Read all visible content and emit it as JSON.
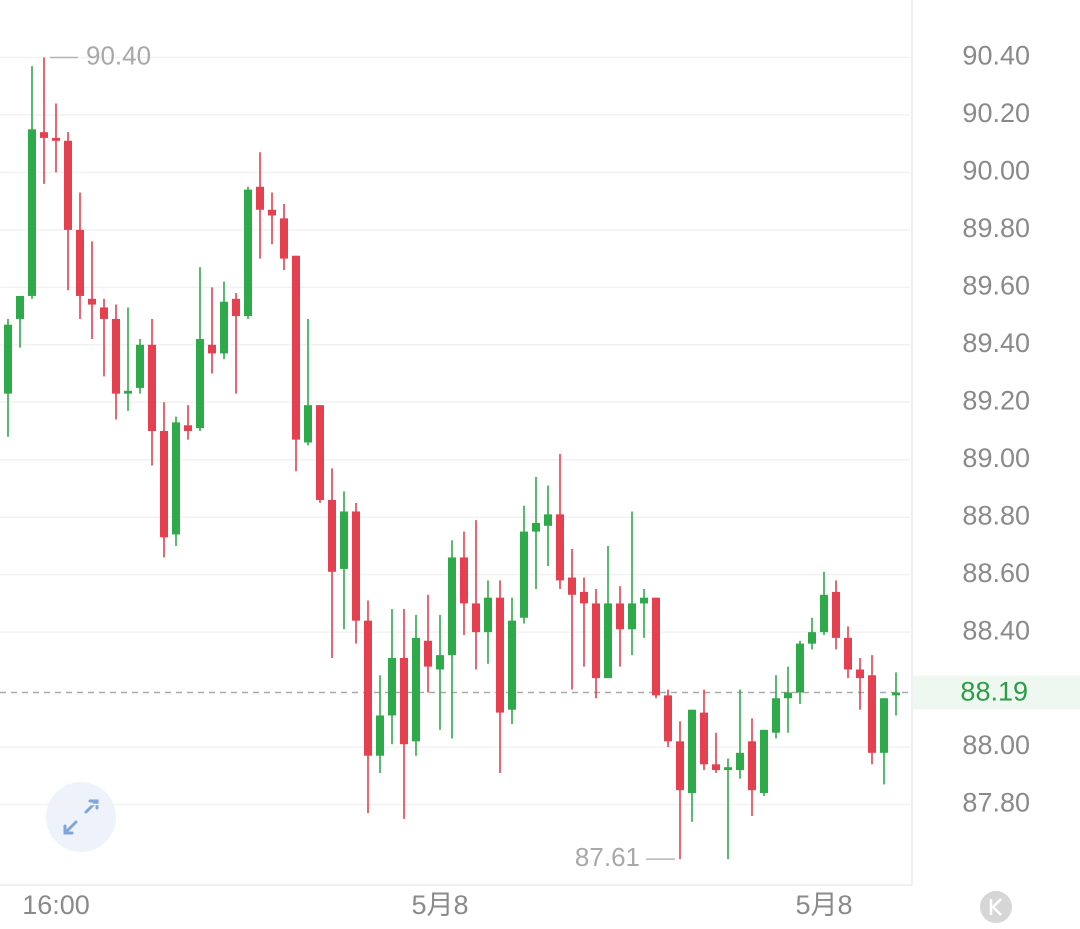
{
  "chart_data": {
    "type": "candlestick",
    "up_color": "#2eaa4a",
    "down_color": "#e5404f",
    "categories": [
      null,
      null,
      null,
      null,
      "16:00",
      null,
      null,
      null,
      null,
      null,
      null,
      null,
      null,
      null,
      null,
      null,
      null,
      null,
      null,
      null,
      null,
      null,
      null,
      null,
      null,
      null,
      null,
      null,
      null,
      null,
      null,
      null,
      null,
      null,
      null,
      null,
      "5月8",
      null,
      null,
      null,
      null,
      null,
      null,
      null,
      null,
      null,
      null,
      null,
      null,
      null,
      null,
      null,
      null,
      null,
      null,
      null,
      null,
      null,
      null,
      null,
      null,
      null,
      null,
      null,
      null,
      null,
      null,
      null,
      "5月8",
      null,
      null,
      null,
      null,
      null,
      null
    ],
    "open": [
      89.23,
      89.49,
      89.57,
      90.14,
      90.12,
      90.11,
      89.8,
      89.56,
      89.53,
      89.49,
      89.23,
      89.25,
      89.4,
      89.1,
      88.74,
      89.12,
      89.11,
      89.4,
      89.37,
      89.56,
      89.5,
      89.95,
      89.87,
      89.84,
      89.71,
      89.06,
      89.19,
      88.86,
      88.62,
      88.82,
      88.44,
      87.97,
      88.11,
      88.31,
      88.02,
      88.37,
      88.27,
      88.32,
      88.66,
      88.5,
      88.4,
      88.52,
      88.13,
      88.45,
      88.75,
      88.77,
      88.81,
      88.59,
      88.54,
      88.5,
      88.24,
      88.5,
      88.41,
      88.5,
      88.52,
      88.18,
      88.02,
      87.84,
      88.12,
      87.94,
      87.92,
      87.92,
      88.02,
      87.84,
      88.05,
      88.17,
      88.19,
      88.36,
      88.4,
      88.54,
      88.38,
      88.27,
      88.25,
      87.98,
      88.18
    ],
    "high": [
      89.49,
      89.57,
      90.37,
      90.4,
      90.24,
      90.14,
      89.93,
      89.76,
      89.56,
      89.54,
      89.53,
      89.42,
      89.49,
      89.2,
      89.15,
      89.19,
      89.67,
      89.6,
      89.62,
      89.58,
      89.95,
      90.07,
      89.93,
      89.89,
      89.71,
      89.49,
      89.19,
      88.97,
      88.89,
      88.85,
      88.51,
      88.25,
      88.48,
      88.48,
      88.46,
      88.53,
      88.46,
      88.72,
      88.75,
      88.79,
      88.58,
      88.58,
      88.52,
      88.84,
      88.94,
      88.91,
      89.02,
      88.69,
      88.59,
      88.55,
      88.7,
      88.56,
      88.82,
      88.55,
      88.52,
      88.2,
      88.09,
      88.13,
      88.2,
      88.05,
      87.96,
      88.2,
      88.1,
      88.06,
      88.25,
      88.28,
      88.37,
      88.45,
      88.61,
      88.58,
      88.42,
      88.31,
      88.32,
      88.17,
      88.26
    ],
    "low": [
      89.08,
      89.39,
      89.56,
      89.96,
      90.0,
      89.59,
      89.49,
      89.42,
      89.29,
      89.14,
      89.17,
      89.23,
      88.98,
      88.66,
      88.7,
      89.07,
      89.1,
      89.3,
      89.35,
      89.23,
      89.49,
      89.7,
      89.75,
      89.66,
      88.96,
      89.05,
      88.85,
      88.31,
      88.41,
      88.36,
      87.77,
      87.91,
      88.01,
      87.75,
      87.97,
      88.19,
      88.06,
      88.03,
      88.39,
      88.27,
      88.29,
      87.91,
      88.08,
      88.43,
      88.55,
      88.63,
      88.55,
      88.2,
      88.28,
      88.17,
      88.24,
      88.28,
      88.32,
      88.38,
      88.17,
      88.0,
      87.61,
      87.74,
      87.92,
      87.91,
      87.61,
      87.89,
      87.76,
      87.83,
      88.03,
      88.05,
      88.15,
      88.34,
      88.39,
      88.34,
      88.24,
      88.13,
      87.94,
      87.87,
      88.11
    ],
    "close": [
      89.47,
      89.57,
      90.15,
      90.12,
      90.11,
      89.8,
      89.57,
      89.54,
      89.49,
      89.23,
      89.24,
      89.4,
      89.1,
      88.73,
      89.13,
      89.1,
      89.42,
      89.37,
      89.55,
      89.5,
      89.94,
      89.87,
      89.85,
      89.7,
      89.07,
      89.19,
      88.86,
      88.61,
      88.82,
      88.44,
      87.97,
      88.11,
      88.31,
      88.01,
      88.38,
      88.28,
      88.32,
      88.66,
      88.5,
      88.4,
      88.52,
      88.12,
      88.44,
      88.75,
      88.78,
      88.81,
      88.58,
      88.53,
      88.5,
      88.24,
      88.5,
      88.41,
      88.5,
      88.52,
      88.18,
      88.02,
      87.85,
      88.13,
      87.94,
      87.92,
      87.93,
      87.98,
      87.85,
      88.06,
      88.17,
      88.19,
      88.36,
      88.4,
      88.53,
      88.38,
      88.27,
      88.24,
      87.98,
      88.17,
      88.19
    ],
    "ylim": [
      87.52,
      90.6
    ],
    "yticks": [
      {
        "value": 87.8,
        "label": "87.80"
      },
      {
        "value": 88,
        "label": "88.00"
      },
      {
        "value": 88.4,
        "label": "88.40"
      },
      {
        "value": 88.6,
        "label": "88.60"
      },
      {
        "value": 88.8,
        "label": "88.80"
      },
      {
        "value": 89,
        "label": "89.00"
      },
      {
        "value": 89.2,
        "label": "89.20"
      },
      {
        "value": 89.4,
        "label": "89.40"
      },
      {
        "value": 89.6,
        "label": "89.60"
      },
      {
        "value": 89.8,
        "label": "89.80"
      },
      {
        "value": 90,
        "label": "90.00"
      },
      {
        "value": 90.2,
        "label": "90.20"
      },
      {
        "value": 90.4,
        "label": "90.40"
      }
    ],
    "grid": true,
    "last_price": 88.19,
    "max_label": {
      "value": 90.4,
      "label": "90.40"
    },
    "min_label": 87.61
  }
}
